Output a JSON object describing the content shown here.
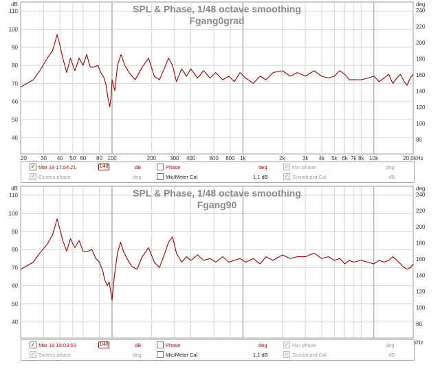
{
  "units": {
    "left": "dB",
    "right": "deg"
  },
  "y_ticks_db": [
    110,
    100,
    90,
    80,
    70,
    60,
    50,
    40
  ],
  "y_ticks_deg": [
    240,
    220,
    200,
    180,
    160,
    140,
    120,
    100,
    80
  ],
  "x_ticks": [
    {
      "f": 20,
      "label": "20"
    },
    {
      "f": 30,
      "label": "30"
    },
    {
      "f": 40,
      "label": "40"
    },
    {
      "f": 50,
      "label": "50"
    },
    {
      "f": 60,
      "label": "60"
    },
    {
      "f": 80,
      "label": "80"
    },
    {
      "f": 100,
      "label": "100"
    },
    {
      "f": 200,
      "label": "200"
    },
    {
      "f": 300,
      "label": "300"
    },
    {
      "f": 400,
      "label": "400"
    },
    {
      "f": 600,
      "label": "600"
    },
    {
      "f": 800,
      "label": "800"
    },
    {
      "f": 1000,
      "label": "1k"
    },
    {
      "f": 2000,
      "label": "2k"
    },
    {
      "f": 3000,
      "label": "3k"
    },
    {
      "f": 4000,
      "label": "4k"
    },
    {
      "f": 5000,
      "label": "5k"
    },
    {
      "f": 6000,
      "label": "6k"
    },
    {
      "f": 7000,
      "label": "7k"
    },
    {
      "f": 8000,
      "label": "8k"
    },
    {
      "f": 10000,
      "label": "10k"
    },
    {
      "f": 20000,
      "label": "20,0kHz"
    }
  ],
  "colors": {
    "trace": "#990000",
    "grid": "#d6d6d6",
    "grid_major": "#b8b8b8",
    "frame": "#999999",
    "title": "#8a8a8a"
  },
  "chart_data": [
    {
      "type": "line",
      "title": "SPL & Phase, 1/48 octave smoothing",
      "subtitle": "Fgang0grad",
      "xlabel": "",
      "ylabel": "dB",
      "y2label": "deg",
      "xscale": "log",
      "xlim": [
        20,
        20000
      ],
      "ylim": [
        31,
        115
      ],
      "y2lim": [
        62,
        250
      ],
      "grid": true,
      "series": [
        {
          "values": [
            [
              20,
              68
            ],
            [
              25,
              72
            ],
            [
              28,
              77
            ],
            [
              32,
              84
            ],
            [
              35,
              88
            ],
            [
              37,
              94
            ],
            [
              38,
              97
            ],
            [
              40,
              91
            ],
            [
              42,
              84
            ],
            [
              45,
              76
            ],
            [
              48,
              84
            ],
            [
              52,
              77
            ],
            [
              56,
              84
            ],
            [
              60,
              80
            ],
            [
              64,
              86
            ],
            [
              68,
              79
            ],
            [
              72,
              79
            ],
            [
              78,
              80
            ],
            [
              82,
              76
            ],
            [
              87,
              73
            ],
            [
              90,
              69
            ],
            [
              93,
              62
            ],
            [
              96,
              57
            ],
            [
              98,
              62
            ],
            [
              100,
              72
            ],
            [
              105,
              66
            ],
            [
              110,
              80
            ],
            [
              117,
              86
            ],
            [
              125,
              80
            ],
            [
              135,
              76
            ],
            [
              150,
              72
            ],
            [
              170,
              79
            ],
            [
              190,
              84
            ],
            [
              210,
              74
            ],
            [
              230,
              72
            ],
            [
              250,
              78
            ],
            [
              270,
              84
            ],
            [
              290,
              80
            ],
            [
              310,
              71
            ],
            [
              340,
              78
            ],
            [
              370,
              74
            ],
            [
              400,
              78
            ],
            [
              450,
              73
            ],
            [
              500,
              77
            ],
            [
              560,
              73
            ],
            [
              620,
              76
            ],
            [
              700,
              72
            ],
            [
              780,
              74
            ],
            [
              860,
              71
            ],
            [
              950,
              76
            ],
            [
              1050,
              73
            ],
            [
              1200,
              70
            ],
            [
              1350,
              74
            ],
            [
              1500,
              72
            ],
            [
              1700,
              76
            ],
            [
              2000,
              77
            ],
            [
              2300,
              74
            ],
            [
              2600,
              76
            ],
            [
              3000,
              74
            ],
            [
              3500,
              77
            ],
            [
              4000,
              74
            ],
            [
              4500,
              73
            ],
            [
              5000,
              74
            ],
            [
              5500,
              77
            ],
            [
              6000,
              75
            ],
            [
              6500,
              72
            ],
            [
              7000,
              72
            ],
            [
              8000,
              72
            ],
            [
              9000,
              73
            ],
            [
              10000,
              74
            ],
            [
              11000,
              71
            ],
            [
              12000,
              73
            ],
            [
              13000,
              75
            ],
            [
              14000,
              70
            ],
            [
              15000,
              73
            ],
            [
              16000,
              75
            ],
            [
              17000,
              71
            ],
            [
              18000,
              69
            ],
            [
              19000,
              73
            ],
            [
              20000,
              75
            ]
          ]
        }
      ]
    },
    {
      "type": "line",
      "title": "SPL & Phase, 1/48 octave smoothing",
      "subtitle": "Fgang90",
      "xlabel": "",
      "ylabel": "dB",
      "y2label": "deg",
      "xscale": "log",
      "xlim": [
        20,
        20000
      ],
      "ylim": [
        31,
        115
      ],
      "y2lim": [
        62,
        250
      ],
      "grid": true,
      "series": [
        {
          "values": [
            [
              20,
              69
            ],
            [
              25,
              73
            ],
            [
              28,
              78
            ],
            [
              32,
              83
            ],
            [
              35,
              88
            ],
            [
              37,
              94
            ],
            [
              38,
              97
            ],
            [
              40,
              91
            ],
            [
              42,
              85
            ],
            [
              45,
              79
            ],
            [
              48,
              86
            ],
            [
              52,
              81
            ],
            [
              56,
              85
            ],
            [
              60,
              79
            ],
            [
              65,
              79
            ],
            [
              70,
              80
            ],
            [
              75,
              75
            ],
            [
              80,
              73
            ],
            [
              85,
              68
            ],
            [
              88,
              63
            ],
            [
              92,
              60
            ],
            [
              95,
              62
            ],
            [
              98,
              56
            ],
            [
              100,
              52
            ],
            [
              104,
              65
            ],
            [
              110,
              78
            ],
            [
              116,
              84
            ],
            [
              122,
              79
            ],
            [
              130,
              75
            ],
            [
              140,
              71
            ],
            [
              155,
              69
            ],
            [
              170,
              76
            ],
            [
              190,
              81
            ],
            [
              210,
              73
            ],
            [
              230,
              70
            ],
            [
              250,
              77
            ],
            [
              270,
              84
            ],
            [
              290,
              87
            ],
            [
              310,
              78
            ],
            [
              340,
              73
            ],
            [
              370,
              76
            ],
            [
              400,
              74
            ],
            [
              450,
              77
            ],
            [
              500,
              74
            ],
            [
              560,
              75
            ],
            [
              620,
              73
            ],
            [
              700,
              76
            ],
            [
              780,
              73
            ],
            [
              860,
              74
            ],
            [
              950,
              75
            ],
            [
              1050,
              73
            ],
            [
              1200,
              75
            ],
            [
              1350,
              72
            ],
            [
              1500,
              76
            ],
            [
              1700,
              74
            ],
            [
              2000,
              77
            ],
            [
              2300,
              75
            ],
            [
              2600,
              76
            ],
            [
              3000,
              76
            ],
            [
              3500,
              78
            ],
            [
              4000,
              75
            ],
            [
              4500,
              76
            ],
            [
              5000,
              74
            ],
            [
              5500,
              75
            ],
            [
              6000,
              72
            ],
            [
              6500,
              74
            ],
            [
              7000,
              73
            ],
            [
              8000,
              74
            ],
            [
              9000,
              73
            ],
            [
              10000,
              72
            ],
            [
              11000,
              74
            ],
            [
              12000,
              73
            ],
            [
              13000,
              74
            ],
            [
              14000,
              76
            ],
            [
              15000,
              74
            ],
            [
              16000,
              72
            ],
            [
              17000,
              70
            ],
            [
              18000,
              69
            ],
            [
              19000,
              70
            ],
            [
              20000,
              72
            ]
          ]
        }
      ]
    }
  ],
  "legends": [
    {
      "trace_checked": true,
      "trace_label": "Mär 18 17:54:21",
      "trace_swatch": "1/48",
      "trace_unit": "dB",
      "phase_label": "Phase",
      "phase_unit": "deg",
      "minphase_label": "Min phase",
      "minphase_unit": "deg",
      "excess_label": "Excess phase",
      "excess_unit": "deg",
      "mic_label": "Mic/Meter Cal",
      "mic_value": "1,1 dB",
      "soundcard_label": "Soundcard Cal",
      "soundcard_unit": "dB"
    },
    {
      "trace_checked": true,
      "trace_label": "Mär 18 18:03:53",
      "trace_swatch": "1/48",
      "trace_unit": "dB",
      "phase_label": "Phase",
      "phase_unit": "deg",
      "minphase_label": "Min phase",
      "minphase_unit": "deg",
      "excess_label": "Excess phase",
      "excess_unit": "deg",
      "mic_label": "Mic/Meter Cal",
      "mic_value": "1,1 dB",
      "soundcard_label": "Soundcard Cal",
      "soundcard_unit": "dB"
    }
  ],
  "checkmark": "✓"
}
